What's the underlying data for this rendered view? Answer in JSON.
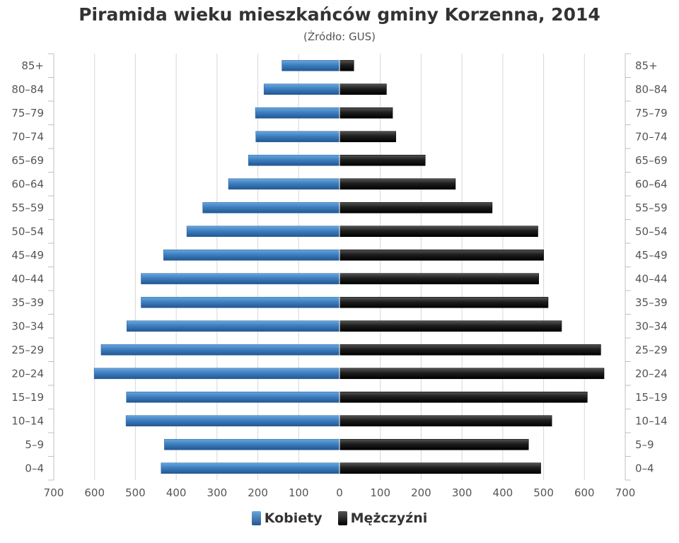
{
  "chart_data": {
    "type": "bar",
    "orientation": "horizontal-population-pyramid",
    "title": "Piramida wieku mieszkańców gminy Korzenna, 2014",
    "subtitle": "(Źródło: GUS)",
    "categories": [
      "0–4",
      "5–9",
      "10–14",
      "15–19",
      "20–24",
      "25–29",
      "30–34",
      "35–39",
      "40–44",
      "45–49",
      "50–54",
      "55–59",
      "60–64",
      "65–69",
      "70–74",
      "75–79",
      "80–84",
      "85+"
    ],
    "series": [
      {
        "name": "Kobiety",
        "color": "#3d7fc1",
        "values": [
          437,
          429,
          523,
          522,
          601,
          584,
          521,
          486,
          486,
          431,
          374,
          335,
          272,
          223,
          205,
          206,
          185,
          141
        ]
      },
      {
        "name": "Mężczyźni",
        "color": "#1a1a1a",
        "values": [
          493,
          463,
          520,
          607,
          648,
          640,
          544,
          511,
          488,
          500,
          486,
          374,
          284,
          210,
          138,
          130,
          115,
          35
        ]
      }
    ],
    "xlim": [
      -700,
      700
    ],
    "xticks": [
      "700",
      "600",
      "500",
      "400",
      "300",
      "200",
      "100",
      "0",
      "100",
      "200",
      "300",
      "400",
      "500",
      "600",
      "700"
    ],
    "grid": true,
    "legend": "bottom"
  }
}
